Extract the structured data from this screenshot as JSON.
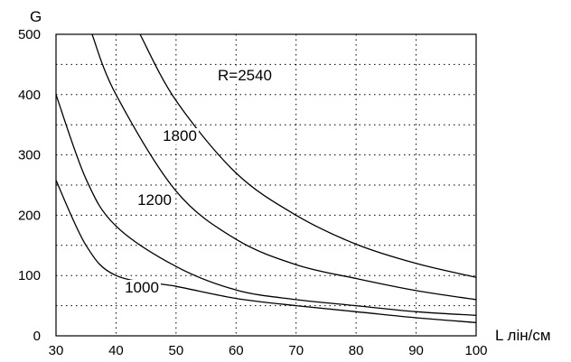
{
  "chart_data": {
    "type": "line",
    "title": "",
    "xlabel": "L лін/см",
    "ylabel": "G",
    "xlim": [
      30,
      100
    ],
    "ylim": [
      0,
      500
    ],
    "x_ticks": [
      30,
      40,
      50,
      60,
      70,
      80,
      90,
      100
    ],
    "y_ticks": [
      0,
      100,
      200,
      300,
      400,
      500
    ],
    "grid": true,
    "legend": "none",
    "x": [
      30,
      35,
      36,
      40,
      42,
      44,
      50,
      60,
      70,
      80,
      90,
      100
    ],
    "series": [
      {
        "name": "1000",
        "values": [
          258,
          150,
          null,
          100,
          null,
          null,
          82,
          62,
          50,
          40,
          30,
          22
        ]
      },
      {
        "name": "1200",
        "values": [
          400,
          260,
          null,
          182,
          null,
          null,
          115,
          76,
          60,
          50,
          40,
          34
        ]
      },
      {
        "name": "1800",
        "values": [
          null,
          null,
          500,
          400,
          null,
          null,
          240,
          160,
          118,
          95,
          75,
          60
        ]
      },
      {
        "name": "R=2540",
        "values": [
          null,
          null,
          null,
          null,
          null,
          500,
          390,
          270,
          200,
          152,
          120,
          97
        ]
      }
    ]
  }
}
